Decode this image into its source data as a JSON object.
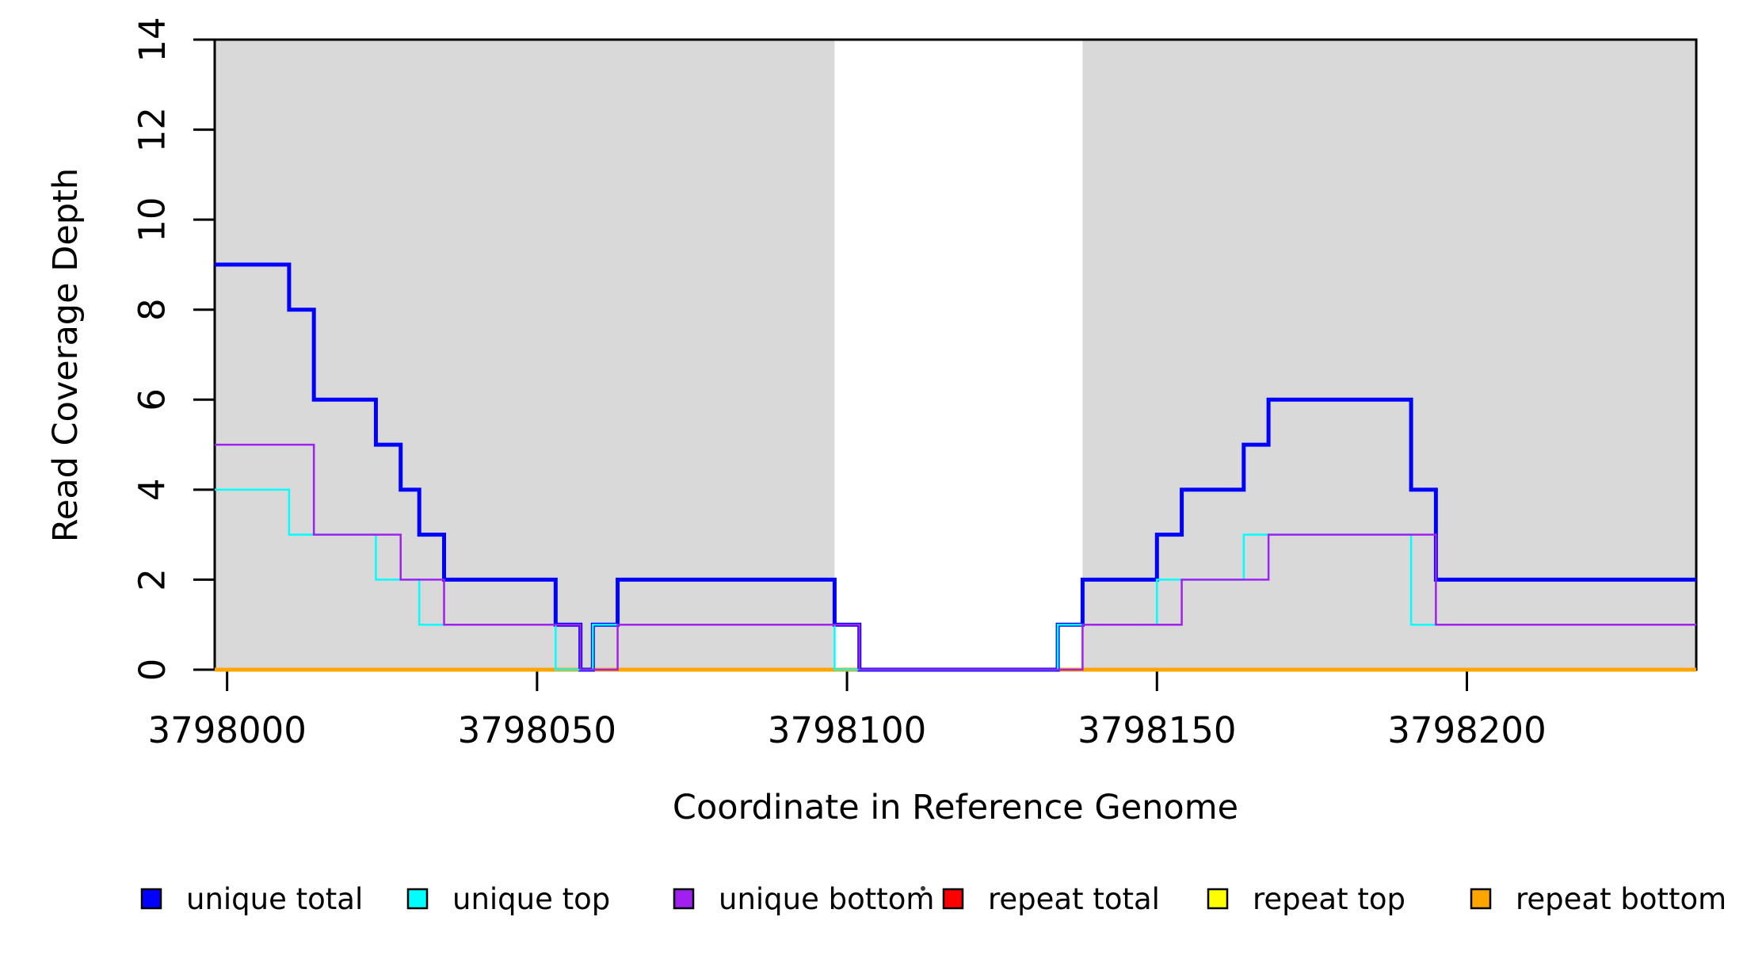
{
  "chart_data": {
    "type": "line",
    "subtype": "step-coverage",
    "title": "",
    "xlabel": "Coordinate in Reference Genome",
    "ylabel": "Read Coverage Depth",
    "xlim": [
      3797998,
      3798237
    ],
    "ylim": [
      0,
      14
    ],
    "x_ticks": [
      3798000,
      3798050,
      3798100,
      3798150,
      3798200
    ],
    "x_tick_labels": [
      "3798000",
      "3798050",
      "3798100",
      "3798150",
      "3798200"
    ],
    "y_ticks": [
      0,
      2,
      4,
      6,
      8,
      10,
      12,
      14
    ],
    "y_tick_labels": [
      "0",
      "2",
      "4",
      "6",
      "8",
      "10",
      "12",
      "14"
    ],
    "grid": "off",
    "axis_color": "#000000",
    "panel_background": "#ffffff",
    "shaded_regions": [
      {
        "x0": 3797998,
        "x1": 3798098,
        "color": "#d9d9d9"
      },
      {
        "x0": 3798138,
        "x1": 3798237,
        "color": "#d9d9d9"
      }
    ],
    "series": [
      {
        "name": "repeat total",
        "slug": "repeat-total",
        "color": "#ff0000",
        "line_width": 5,
        "steps": [
          [
            3797998,
            0
          ]
        ]
      },
      {
        "name": "repeat top",
        "slug": "repeat-top",
        "color": "#ffff00",
        "line_width": 5,
        "steps": [
          [
            3797998,
            0
          ]
        ]
      },
      {
        "name": "repeat bottom",
        "slug": "repeat-bottom",
        "color": "#ffa500",
        "line_width": 5,
        "steps": [
          [
            3797998,
            0
          ]
        ]
      },
      {
        "name": "unique total",
        "slug": "unique-total",
        "color": "#0000ff",
        "line_width": 5,
        "steps": [
          [
            3797998,
            9
          ],
          [
            3798010,
            8
          ],
          [
            3798014,
            6
          ],
          [
            3798024,
            5
          ],
          [
            3798028,
            4
          ],
          [
            3798031,
            3
          ],
          [
            3798035,
            2
          ],
          [
            3798053,
            1
          ],
          [
            3798057,
            0
          ],
          [
            3798059,
            1
          ],
          [
            3798063,
            2
          ],
          [
            3798098,
            1
          ],
          [
            3798102,
            0
          ],
          [
            3798134,
            1
          ],
          [
            3798138,
            2
          ],
          [
            3798150,
            3
          ],
          [
            3798154,
            4
          ],
          [
            3798164,
            5
          ],
          [
            3798168,
            6
          ],
          [
            3798191,
            4
          ],
          [
            3798195,
            2
          ]
        ]
      },
      {
        "name": "unique top",
        "slug": "unique-top",
        "color": "#00ffff",
        "line_width": 2.5,
        "steps": [
          [
            3797998,
            4
          ],
          [
            3798010,
            3
          ],
          [
            3798024,
            2
          ],
          [
            3798031,
            1
          ],
          [
            3798053,
            0
          ],
          [
            3798059,
            1
          ],
          [
            3798098,
            0
          ],
          [
            3798134,
            1
          ],
          [
            3798150,
            2
          ],
          [
            3798164,
            3
          ],
          [
            3798191,
            1
          ]
        ]
      },
      {
        "name": "unique bottom",
        "slug": "unique-bottom",
        "color": "#a020f0",
        "line_width": 2.5,
        "steps": [
          [
            3797998,
            5
          ],
          [
            3798014,
            3
          ],
          [
            3798028,
            2
          ],
          [
            3798035,
            1
          ],
          [
            3798057,
            0
          ],
          [
            3798063,
            1
          ],
          [
            3798102,
            0
          ],
          [
            3798138,
            1
          ],
          [
            3798154,
            2
          ],
          [
            3798168,
            3
          ],
          [
            3798195,
            1
          ]
        ]
      }
    ],
    "legend": {
      "position": "bottom",
      "entries": [
        {
          "label": "unique total",
          "color": "#0000ff"
        },
        {
          "label": "unique top",
          "color": "#00ffff"
        },
        {
          "label": "unique bottom",
          "color": "#a020f0"
        },
        {
          "label": "repeat total",
          "color": "#ff0000"
        },
        {
          "label": "repeat top",
          "color": "#ffff00"
        },
        {
          "label": "repeat bottom",
          "color": "#ffa500"
        }
      ]
    }
  }
}
